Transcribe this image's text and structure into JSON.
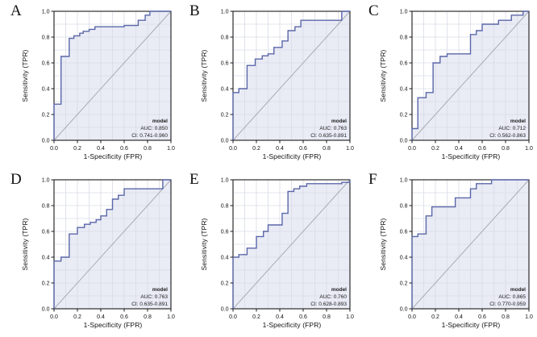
{
  "styles": {
    "curve_color": "#5a67a8",
    "fill_color": "#e9ebf5",
    "grid_color": "#d9dbe6",
    "diagonal_color": "#a9abb5",
    "frame_color": "#1a1a1a",
    "tick_color": "#1a1a1a"
  },
  "chart_data": [
    {
      "id": "A",
      "type": "line",
      "panel_label": "A",
      "xlabel": "1-Specificity (FPR)",
      "ylabel": "Sensitivity (TPR)",
      "xlim": [
        0,
        1
      ],
      "ylim": [
        0,
        1
      ],
      "xticks": [
        0.0,
        0.2,
        0.4,
        0.6,
        0.8,
        1.0
      ],
      "yticks": [
        0.0,
        0.2,
        0.4,
        0.6,
        0.8,
        1.0
      ],
      "grid": true,
      "grid_step": 0.1,
      "legend": {
        "title": "model",
        "auc_label": "AUC: 0.850",
        "ci_label": "CI: 0.741-0.960"
      },
      "auc": 0.85,
      "ci": [
        0.741,
        0.96
      ],
      "roc_points": [
        [
          0,
          0
        ],
        [
          0,
          0.28
        ],
        [
          0.06,
          0.28
        ],
        [
          0.06,
          0.65
        ],
        [
          0.13,
          0.65
        ],
        [
          0.13,
          0.79
        ],
        [
          0.17,
          0.79
        ],
        [
          0.17,
          0.81
        ],
        [
          0.22,
          0.81
        ],
        [
          0.22,
          0.83
        ],
        [
          0.25,
          0.83
        ],
        [
          0.25,
          0.845
        ],
        [
          0.3,
          0.845
        ],
        [
          0.3,
          0.86
        ],
        [
          0.35,
          0.86
        ],
        [
          0.35,
          0.88
        ],
        [
          0.6,
          0.88
        ],
        [
          0.6,
          0.89
        ],
        [
          0.72,
          0.89
        ],
        [
          0.72,
          0.93
        ],
        [
          0.78,
          0.93
        ],
        [
          0.78,
          0.97
        ],
        [
          0.82,
          0.97
        ],
        [
          0.82,
          1.0
        ],
        [
          1,
          1
        ]
      ]
    },
    {
      "id": "B",
      "type": "line",
      "panel_label": "B",
      "xlabel": "1-Specificity (FPR)",
      "ylabel": "Sensitivity (TPR)",
      "xlim": [
        0,
        1
      ],
      "ylim": [
        0,
        1
      ],
      "xticks": [
        0.0,
        0.2,
        0.4,
        0.6,
        0.8,
        1.0
      ],
      "yticks": [
        0.0,
        0.2,
        0.4,
        0.6,
        0.8,
        1.0
      ],
      "grid": true,
      "grid_step": 0.1,
      "legend": {
        "title": "model",
        "auc_label": "AUC: 0.763",
        "ci_label": "CI: 0.635-0.891"
      },
      "auc": 0.763,
      "ci": [
        0.635,
        0.891
      ],
      "roc_points": [
        [
          0,
          0
        ],
        [
          0,
          0.37
        ],
        [
          0.05,
          0.37
        ],
        [
          0.05,
          0.4
        ],
        [
          0.12,
          0.4
        ],
        [
          0.12,
          0.58
        ],
        [
          0.19,
          0.58
        ],
        [
          0.19,
          0.63
        ],
        [
          0.25,
          0.63
        ],
        [
          0.25,
          0.655
        ],
        [
          0.3,
          0.655
        ],
        [
          0.3,
          0.67
        ],
        [
          0.35,
          0.67
        ],
        [
          0.35,
          0.72
        ],
        [
          0.42,
          0.72
        ],
        [
          0.42,
          0.77
        ],
        [
          0.47,
          0.77
        ],
        [
          0.47,
          0.85
        ],
        [
          0.53,
          0.85
        ],
        [
          0.53,
          0.88
        ],
        [
          0.58,
          0.88
        ],
        [
          0.58,
          0.93
        ],
        [
          0.93,
          0.93
        ],
        [
          0.93,
          1.0
        ],
        [
          1,
          1
        ]
      ]
    },
    {
      "id": "C",
      "type": "line",
      "panel_label": "C",
      "xlabel": "1-Specificity (FPR)",
      "ylabel": "Sensitivity (TPR)",
      "xlim": [
        0,
        1
      ],
      "ylim": [
        0,
        1
      ],
      "xticks": [
        0.0,
        0.2,
        0.4,
        0.6,
        0.8,
        1.0
      ],
      "yticks": [
        0.0,
        0.2,
        0.4,
        0.6,
        0.8,
        1.0
      ],
      "grid": true,
      "grid_step": 0.1,
      "legend": {
        "title": "model",
        "auc_label": "AUC: 0.712",
        "ci_label": "CI: 0.562-0.863"
      },
      "auc": 0.712,
      "ci": [
        0.562,
        0.863
      ],
      "roc_points": [
        [
          0,
          0
        ],
        [
          0,
          0.09
        ],
        [
          0.05,
          0.09
        ],
        [
          0.05,
          0.33
        ],
        [
          0.12,
          0.33
        ],
        [
          0.12,
          0.37
        ],
        [
          0.18,
          0.37
        ],
        [
          0.18,
          0.6
        ],
        [
          0.24,
          0.6
        ],
        [
          0.24,
          0.65
        ],
        [
          0.3,
          0.65
        ],
        [
          0.3,
          0.67
        ],
        [
          0.5,
          0.67
        ],
        [
          0.5,
          0.82
        ],
        [
          0.55,
          0.82
        ],
        [
          0.55,
          0.85
        ],
        [
          0.6,
          0.85
        ],
        [
          0.6,
          0.9
        ],
        [
          0.74,
          0.9
        ],
        [
          0.74,
          0.93
        ],
        [
          0.85,
          0.93
        ],
        [
          0.85,
          0.97
        ],
        [
          0.95,
          0.97
        ],
        [
          0.95,
          1.0
        ],
        [
          1,
          1
        ]
      ]
    },
    {
      "id": "D",
      "type": "line",
      "panel_label": "D",
      "xlabel": "1-Specificity (FPR)",
      "ylabel": "Sensitivity (TPR)",
      "xlim": [
        0,
        1
      ],
      "ylim": [
        0,
        1
      ],
      "xticks": [
        0.0,
        0.2,
        0.4,
        0.6,
        0.8,
        1.0
      ],
      "yticks": [
        0.0,
        0.2,
        0.4,
        0.6,
        0.8,
        1.0
      ],
      "grid": true,
      "grid_step": 0.1,
      "legend": {
        "title": "model",
        "auc_label": "AUC: 0.763",
        "ci_label": "CI: 0.635-0.891"
      },
      "auc": 0.763,
      "ci": [
        0.635,
        0.891
      ],
      "roc_points": [
        [
          0,
          0
        ],
        [
          0,
          0.37
        ],
        [
          0.06,
          0.37
        ],
        [
          0.06,
          0.4
        ],
        [
          0.13,
          0.4
        ],
        [
          0.13,
          0.58
        ],
        [
          0.2,
          0.58
        ],
        [
          0.2,
          0.63
        ],
        [
          0.26,
          0.63
        ],
        [
          0.26,
          0.655
        ],
        [
          0.31,
          0.655
        ],
        [
          0.31,
          0.67
        ],
        [
          0.36,
          0.67
        ],
        [
          0.36,
          0.69
        ],
        [
          0.4,
          0.69
        ],
        [
          0.4,
          0.72
        ],
        [
          0.45,
          0.72
        ],
        [
          0.45,
          0.77
        ],
        [
          0.5,
          0.77
        ],
        [
          0.5,
          0.85
        ],
        [
          0.55,
          0.85
        ],
        [
          0.55,
          0.88
        ],
        [
          0.6,
          0.88
        ],
        [
          0.6,
          0.93
        ],
        [
          0.93,
          0.93
        ],
        [
          0.93,
          1.0
        ],
        [
          1,
          1
        ]
      ]
    },
    {
      "id": "E",
      "type": "line",
      "panel_label": "E",
      "xlabel": "1-Specificity (FPR)",
      "ylabel": "Sensitivity (TPR)",
      "xlim": [
        0,
        1
      ],
      "ylim": [
        0,
        1
      ],
      "xticks": [
        0.0,
        0.2,
        0.4,
        0.6,
        0.8,
        1.0
      ],
      "yticks": [
        0.0,
        0.2,
        0.4,
        0.6,
        0.8,
        1.0
      ],
      "grid": true,
      "grid_step": 0.1,
      "legend": {
        "title": "model",
        "auc_label": "AUC: 0.760",
        "ci_label": "CI: 0.628-0.893"
      },
      "auc": 0.76,
      "ci": [
        0.628,
        0.893
      ],
      "roc_points": [
        [
          0,
          0
        ],
        [
          0,
          0.4
        ],
        [
          0.05,
          0.4
        ],
        [
          0.05,
          0.42
        ],
        [
          0.12,
          0.42
        ],
        [
          0.12,
          0.47
        ],
        [
          0.2,
          0.47
        ],
        [
          0.2,
          0.56
        ],
        [
          0.26,
          0.56
        ],
        [
          0.26,
          0.6
        ],
        [
          0.3,
          0.6
        ],
        [
          0.3,
          0.65
        ],
        [
          0.42,
          0.65
        ],
        [
          0.42,
          0.74
        ],
        [
          0.47,
          0.74
        ],
        [
          0.47,
          0.91
        ],
        [
          0.52,
          0.91
        ],
        [
          0.52,
          0.93
        ],
        [
          0.57,
          0.93
        ],
        [
          0.57,
          0.95
        ],
        [
          0.63,
          0.95
        ],
        [
          0.63,
          0.97
        ],
        [
          0.93,
          0.97
        ],
        [
          0.93,
          0.98
        ],
        [
          1,
          0.98
        ],
        [
          1,
          1
        ]
      ]
    },
    {
      "id": "F",
      "type": "line",
      "panel_label": "F",
      "xlabel": "1-Specificity (FPR)",
      "ylabel": "Sensitivity (TPR)",
      "xlim": [
        0,
        1
      ],
      "ylim": [
        0,
        1
      ],
      "xticks": [
        0.0,
        0.2,
        0.4,
        0.6,
        0.8,
        1.0
      ],
      "yticks": [
        0.0,
        0.2,
        0.4,
        0.6,
        0.8,
        1.0
      ],
      "grid": true,
      "grid_step": 0.1,
      "legend": {
        "title": "model",
        "auc_label": "AUC: 0.865",
        "ci_label": "CI: 0.770-0.959"
      },
      "auc": 0.865,
      "ci": [
        0.77,
        0.959
      ],
      "roc_points": [
        [
          0,
          0
        ],
        [
          0,
          0.56
        ],
        [
          0.05,
          0.56
        ],
        [
          0.05,
          0.58
        ],
        [
          0.12,
          0.58
        ],
        [
          0.12,
          0.72
        ],
        [
          0.17,
          0.72
        ],
        [
          0.17,
          0.79
        ],
        [
          0.37,
          0.79
        ],
        [
          0.37,
          0.86
        ],
        [
          0.5,
          0.86
        ],
        [
          0.5,
          0.93
        ],
        [
          0.55,
          0.93
        ],
        [
          0.55,
          0.97
        ],
        [
          0.68,
          0.97
        ],
        [
          0.68,
          1.0
        ],
        [
          1,
          1
        ]
      ]
    }
  ]
}
